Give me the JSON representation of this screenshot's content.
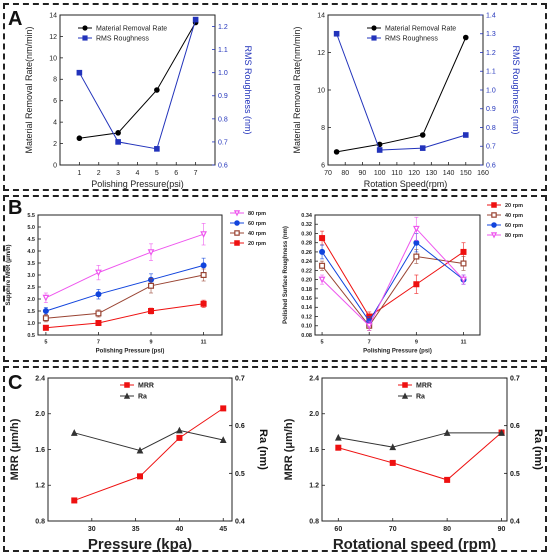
{
  "panels": {
    "a": "A",
    "b": "B",
    "c": "C"
  },
  "chart_data": [
    {
      "id": "a1",
      "type": "line",
      "xlabel": "Polishing Pressure(psi)",
      "ylabel": "Material Removal Rate(nm/min)",
      "y2label": "RMS Roughness (nm)",
      "xlim": [
        0,
        8
      ],
      "xticks": [
        1,
        2,
        3,
        4,
        5,
        6,
        7
      ],
      "ylim": [
        0,
        14
      ],
      "yticks": [
        0,
        2,
        4,
        6,
        8,
        10,
        12,
        14
      ],
      "y2lim": [
        0.6,
        1.25
      ],
      "y2ticks": [
        0.6,
        0.7,
        0.8,
        0.9,
        1.0,
        1.1,
        1.2
      ],
      "legend_position": "top-left",
      "series": [
        {
          "name": "Material Removal Rate",
          "axis": "left",
          "color": "#000000",
          "marker": "circle",
          "x": [
            1,
            3,
            5,
            7
          ],
          "y": [
            2.5,
            3.0,
            7.0,
            13.3
          ]
        },
        {
          "name": "RMS Roughness",
          "axis": "right",
          "color": "#2233bb",
          "marker": "square",
          "x": [
            1,
            3,
            5,
            7
          ],
          "y": [
            1.0,
            0.7,
            0.67,
            1.23
          ]
        }
      ]
    },
    {
      "id": "a2",
      "type": "line",
      "xlabel": "Rotation Speed(rpm)",
      "ylabel": "Material Removal Rate(nm/min)",
      "y2label": "RMS Roughness (nm)",
      "xlim": [
        70,
        160
      ],
      "xticks": [
        70,
        80,
        90,
        100,
        110,
        120,
        130,
        140,
        150,
        160
      ],
      "ylim": [
        6,
        14
      ],
      "yticks": [
        6,
        8,
        10,
        12,
        14
      ],
      "y2lim": [
        0.6,
        1.4
      ],
      "y2ticks": [
        0.6,
        0.7,
        0.8,
        0.9,
        1.0,
        1.1,
        1.2,
        1.3,
        1.4
      ],
      "legend_position": "top-right",
      "series": [
        {
          "name": "Material Removal Rate",
          "axis": "left",
          "color": "#000000",
          "marker": "circle",
          "x": [
            75,
            100,
            125,
            150
          ],
          "y": [
            6.7,
            7.1,
            7.6,
            12.8
          ]
        },
        {
          "name": "RMS Roughness",
          "axis": "right",
          "color": "#2233bb",
          "marker": "square",
          "x": [
            75,
            100,
            125,
            150
          ],
          "y": [
            1.3,
            0.68,
            0.69,
            0.76
          ]
        }
      ]
    },
    {
      "id": "b1",
      "type": "line",
      "xlabel": "Polishing Pressure (psi)",
      "ylabel": "Sapphire MRR (μm/h)",
      "xlim": [
        4.7,
        11.7
      ],
      "xticks": [
        5,
        7,
        9,
        11
      ],
      "ylim": [
        0.5,
        5.5
      ],
      "yticks": [
        0.5,
        1.0,
        1.5,
        2.0,
        2.5,
        3.0,
        3.5,
        4.0,
        4.5,
        5.0,
        5.5
      ],
      "legend_position": "top-left",
      "series": [
        {
          "name": "80 rpm",
          "color": "#ee55ee",
          "marker": "triangle-down",
          "filled": false,
          "x": [
            5,
            7,
            9,
            11
          ],
          "y": [
            2.05,
            3.1,
            3.95,
            4.7
          ],
          "err": [
            0.2,
            0.3,
            0.35,
            0.45
          ]
        },
        {
          "name": "60 rpm",
          "color": "#1144dd",
          "marker": "circle",
          "filled": true,
          "x": [
            5,
            7,
            9,
            11
          ],
          "y": [
            1.5,
            2.2,
            2.8,
            3.4
          ],
          "err": [
            0.15,
            0.2,
            0.25,
            0.3
          ]
        },
        {
          "name": "40 rpm",
          "color": "#994433",
          "marker": "square",
          "filled": false,
          "x": [
            5,
            7,
            9,
            11
          ],
          "y": [
            1.2,
            1.4,
            2.55,
            3.0
          ],
          "err": [
            0.15,
            0.15,
            0.3,
            0.25
          ]
        },
        {
          "name": "20 rpm",
          "color": "#ee1111",
          "marker": "square",
          "filled": true,
          "x": [
            5,
            7,
            9,
            11
          ],
          "y": [
            0.8,
            1.0,
            1.5,
            1.8
          ],
          "err": [
            0.08,
            0.1,
            0.12,
            0.15
          ]
        }
      ]
    },
    {
      "id": "b2",
      "type": "line",
      "xlabel": "Polishing Pressure (psi)",
      "ylabel": "Polished Surface Roughness (nm)",
      "xlim": [
        4.7,
        11.7
      ],
      "xticks": [
        5,
        7,
        9,
        11
      ],
      "ylim": [
        0.08,
        0.34
      ],
      "yticks": [
        0.08,
        0.1,
        0.12,
        0.14,
        0.16,
        0.18,
        0.2,
        0.22,
        0.24,
        0.26,
        0.28,
        0.3,
        0.32,
        0.34
      ],
      "legend_position": "top-right",
      "series": [
        {
          "name": "20 rpm",
          "color": "#ee1111",
          "marker": "square",
          "filled": true,
          "x": [
            5,
            7,
            9,
            11
          ],
          "y": [
            0.29,
            0.12,
            0.19,
            0.26
          ],
          "err": [
            0.015,
            0.01,
            0.02,
            0.02
          ]
        },
        {
          "name": "40 rpm",
          "color": "#994433",
          "marker": "square",
          "filled": false,
          "x": [
            5,
            7,
            9,
            11
          ],
          "y": [
            0.23,
            0.1,
            0.25,
            0.235
          ],
          "err": [
            0.01,
            0.01,
            0.015,
            0.015
          ]
        },
        {
          "name": "60 rpm",
          "color": "#1144dd",
          "marker": "circle",
          "filled": true,
          "x": [
            5,
            7,
            9,
            11
          ],
          "y": [
            0.26,
            0.11,
            0.28,
            0.2
          ],
          "err": [
            0.015,
            0.01,
            0.02,
            0.01
          ]
        },
        {
          "name": "80 rpm",
          "color": "#ee55ee",
          "marker": "triangle-down",
          "filled": false,
          "x": [
            5,
            7,
            9,
            11
          ],
          "y": [
            0.2,
            0.1,
            0.31,
            0.2
          ],
          "err": [
            0.01,
            0.01,
            0.025,
            0.01
          ]
        }
      ]
    },
    {
      "id": "c1",
      "type": "line",
      "xlabel": "Pressure (kpa)",
      "ylabel": "MRR (μm/h)",
      "y2label": "Ra (nm)",
      "xlim": [
        25,
        46
      ],
      "xticks": [
        30,
        35,
        40,
        45
      ],
      "ylim": [
        0.8,
        2.4
      ],
      "yticks": [
        0.8,
        1.2,
        1.6,
        2.0,
        2.4
      ],
      "y2lim": [
        0.4,
        0.7
      ],
      "y2ticks": [
        0.4,
        0.5,
        0.6,
        0.7
      ],
      "legend_position": "top-center",
      "series": [
        {
          "name": "MRR",
          "axis": "left",
          "color": "#ee1111",
          "marker": "square",
          "x": [
            28,
            35.5,
            40,
            45
          ],
          "y": [
            1.03,
            1.3,
            1.73,
            2.06
          ]
        },
        {
          "name": "Ra",
          "axis": "right",
          "color": "#333333",
          "marker": "triangle",
          "x": [
            28,
            35.5,
            40,
            45
          ],
          "y": [
            0.585,
            0.548,
            0.59,
            0.57
          ]
        }
      ]
    },
    {
      "id": "c2",
      "type": "line",
      "xlabel": "Rotational speed (rpm)",
      "ylabel": "MRR (μm/h)",
      "y2label": "Ra (nm)",
      "xlim": [
        57,
        91
      ],
      "xticks": [
        60,
        70,
        80,
        90
      ],
      "ylim": [
        0.8,
        2.4
      ],
      "yticks": [
        0.8,
        1.2,
        1.6,
        2.0,
        2.4
      ],
      "y2lim": [
        0.4,
        0.7
      ],
      "y2ticks": [
        0.4,
        0.5,
        0.6,
        0.7
      ],
      "legend_position": "top-center",
      "series": [
        {
          "name": "MRR",
          "axis": "left",
          "color": "#ee1111",
          "marker": "square",
          "x": [
            60,
            70,
            80,
            90
          ],
          "y": [
            1.62,
            1.45,
            1.26,
            1.79
          ]
        },
        {
          "name": "Ra",
          "axis": "right",
          "color": "#333333",
          "marker": "triangle",
          "x": [
            60,
            70,
            80,
            90
          ],
          "y": [
            0.575,
            0.555,
            0.585,
            0.585
          ]
        }
      ]
    }
  ]
}
